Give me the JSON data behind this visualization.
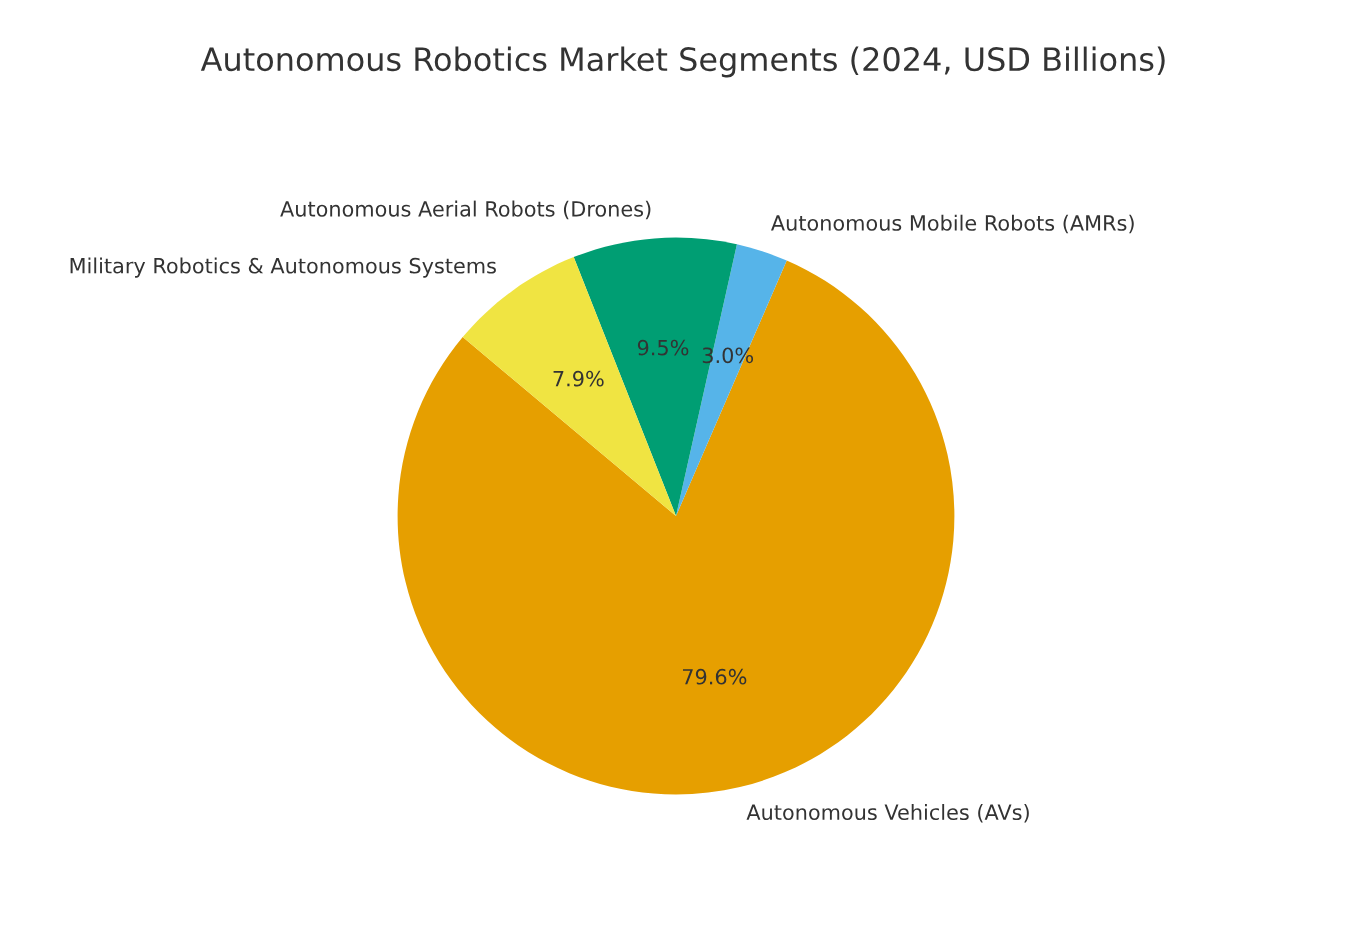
{
  "chart_data": {
    "type": "pie",
    "title": "Autonomous Robotics Market Segments (2024, USD Billions)",
    "categories": [
      "Autonomous Vehicles (AVs)",
      "Autonomous Mobile Robots (AMRs)",
      "Autonomous Aerial Robots (Drones)",
      "Military Robotics & Autonomous Systems"
    ],
    "values": [
      79.6,
      3.0,
      9.5,
      7.9
    ],
    "value_labels": [
      "79.6%",
      "3.0%",
      "9.5%",
      "7.9%"
    ],
    "colors": [
      "#e69f00",
      "#56b4e9",
      "#009e73",
      "#f0e442"
    ]
  }
}
